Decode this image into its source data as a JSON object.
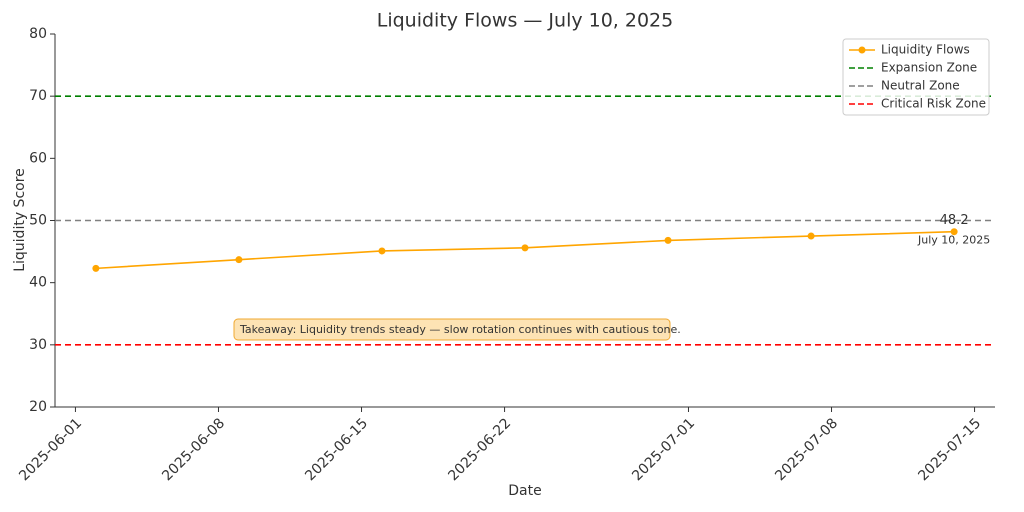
{
  "chart_data": {
    "type": "line",
    "title": "Liquidity Flows — July 10, 2025",
    "x_label": "Date",
    "y_label": "Liquidity Score",
    "x": [
      "2025-06-02",
      "2025-06-09",
      "2025-06-16",
      "2025-06-23",
      "2025-06-30",
      "2025-07-07",
      "2025-07-14"
    ],
    "series": [
      {
        "name": "Liquidity Flows",
        "color": "#ffa500",
        "values": [
          42.3,
          43.7,
          45.1,
          45.6,
          46.8,
          47.5,
          48.2
        ]
      }
    ],
    "reference_lines": [
      {
        "name": "Expansion Zone",
        "value": 70,
        "color": "#008000"
      },
      {
        "name": "Neutral Zone",
        "value": 50,
        "color": "#808080"
      },
      {
        "name": "Critical Risk Zone",
        "value": 30,
        "color": "#ff0000"
      }
    ],
    "xlim": [
      "2025-05-31",
      "2025-07-16"
    ],
    "xticks": [
      "2025-06-01",
      "2025-06-08",
      "2025-06-15",
      "2025-06-22",
      "2025-07-01",
      "2025-07-08",
      "2025-07-15"
    ],
    "ylim": [
      20,
      80
    ],
    "yticks": [
      20,
      30,
      40,
      50,
      60,
      70,
      80
    ],
    "point_annotation": "July 10, 2025",
    "takeaway": "Takeaway: Liquidity trends steady — slow rotation continues with cautious tone.",
    "legend": "upper right"
  }
}
